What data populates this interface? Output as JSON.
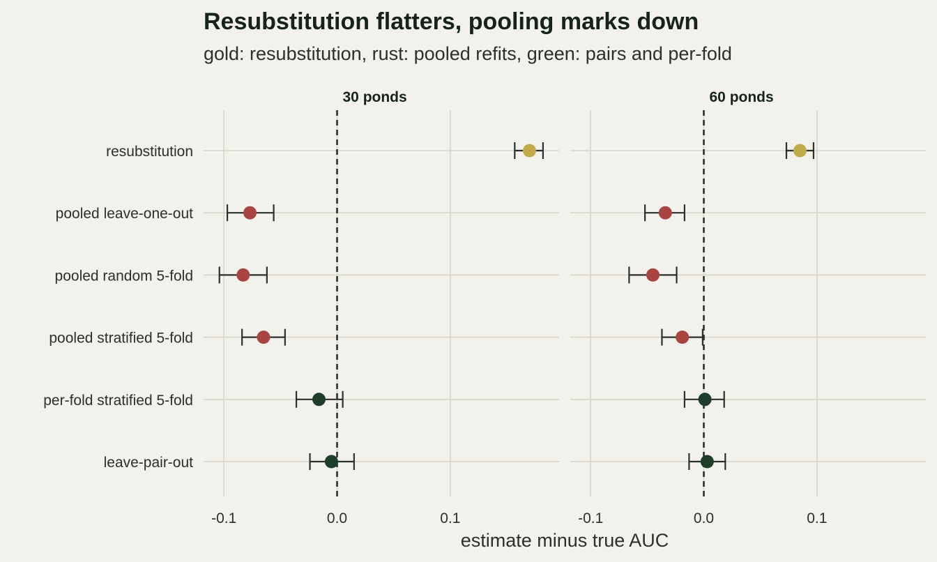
{
  "title": "Resubstitution flatters, pooling marks down",
  "subtitle": "gold: resubstitution, rust: pooled refits, green: pairs and per-fold",
  "colors": {
    "background": "#f2f1eb",
    "grid": "#d7d6c8",
    "gold": "#c2a94a",
    "rust": "#a94442",
    "green": "#1f3d2b",
    "reference_line": "#2a302b",
    "errorbar": "#2a302b"
  },
  "chart_data": {
    "type": "scatter",
    "subtype": "dot-and-whisker, faceted",
    "xlabel": "estimate minus true AUC",
    "ylabel": "",
    "xlim": [
      -0.1,
      0.1
    ],
    "xticks": [
      "-0.1",
      "0.0",
      "0.1"
    ],
    "reference_line_x": 0,
    "grid": true,
    "categories": [
      "resubstitution",
      "pooled leave-one-out",
      "pooled random 5-fold",
      "pooled stratified 5-fold",
      "per-fold stratified 5-fold",
      "leave-pair-out"
    ],
    "facets": [
      {
        "label": "30 ponds",
        "points": [
          {
            "method": "resubstitution",
            "group": "gold",
            "estimate": 0.17,
            "low": 0.157,
            "high": 0.182
          },
          {
            "method": "pooled leave-one-out",
            "group": "rust",
            "estimate": -0.077,
            "low": -0.097,
            "high": -0.056
          },
          {
            "method": "pooled random 5-fold",
            "group": "rust",
            "estimate": -0.083,
            "low": -0.104,
            "high": -0.062
          },
          {
            "method": "pooled stratified 5-fold",
            "group": "rust",
            "estimate": -0.065,
            "low": -0.084,
            "high": -0.046
          },
          {
            "method": "per-fold stratified 5-fold",
            "group": "green",
            "estimate": -0.016,
            "low": -0.036,
            "high": 0.005
          },
          {
            "method": "leave-pair-out",
            "group": "green",
            "estimate": -0.005,
            "low": -0.024,
            "high": 0.015
          }
        ]
      },
      {
        "label": "60 ponds",
        "points": [
          {
            "method": "resubstitution",
            "group": "gold",
            "estimate": 0.085,
            "low": 0.073,
            "high": 0.097
          },
          {
            "method": "pooled leave-one-out",
            "group": "rust",
            "estimate": -0.034,
            "low": -0.052,
            "high": -0.017
          },
          {
            "method": "pooled random 5-fold",
            "group": "rust",
            "estimate": -0.045,
            "low": -0.066,
            "high": -0.024
          },
          {
            "method": "pooled stratified 5-fold",
            "group": "rust",
            "estimate": -0.019,
            "low": -0.037,
            "high": -0.001
          },
          {
            "method": "per-fold stratified 5-fold",
            "group": "green",
            "estimate": 0.001,
            "low": -0.017,
            "high": 0.018
          },
          {
            "method": "leave-pair-out",
            "group": "green",
            "estimate": 0.003,
            "low": -0.013,
            "high": 0.019
          }
        ]
      }
    ]
  }
}
